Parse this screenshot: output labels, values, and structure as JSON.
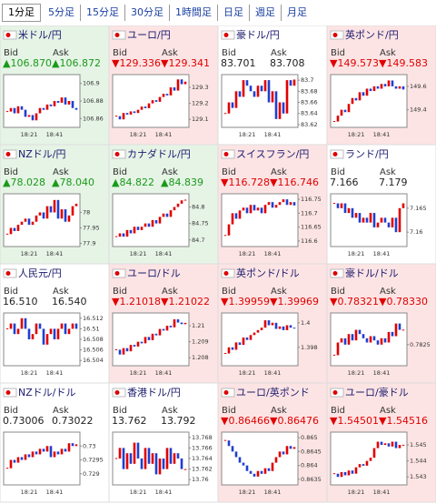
{
  "tabs": [
    "1分足",
    "5分足",
    "15分足",
    "30分足",
    "1時間足",
    "日足",
    "週足",
    "月足"
  ],
  "selected_tab": 0,
  "up_color": "#e00000",
  "down_color": "#1f3fd0",
  "chart_data": [
    {
      "type": "candlestick",
      "title": "米ドル/円",
      "bid_label": "Bid",
      "ask_label": "Ask",
      "bid": "▲106.870",
      "ask": "▲106.872",
      "background": "#e6f4e6",
      "ylim": [
        106.85,
        106.91
      ],
      "yticks": [
        106.9,
        106.88,
        106.86
      ],
      "x_labels": [
        "18:21",
        "18:41"
      ],
      "values": [
        106.868,
        106.872,
        106.866,
        106.874,
        106.87,
        106.862,
        106.864,
        106.858,
        106.866,
        106.872,
        106.87,
        106.876,
        106.874,
        106.88,
        106.878,
        106.884,
        106.876,
        106.88,
        106.872,
        106.87
      ]
    },
    {
      "type": "candlestick",
      "title": "ユーロ/円",
      "bid_label": "Bid",
      "ask_label": "Ask",
      "bid": "▼129.336",
      "ask": "▼129.341",
      "background": "#fde4e4",
      "ylim": [
        129.05,
        129.38
      ],
      "yticks": [
        129.3,
        129.2,
        129.1
      ],
      "x_labels": [
        "18:21",
        "18:41"
      ],
      "values": [
        129.12,
        129.1,
        129.14,
        129.13,
        129.15,
        129.14,
        129.16,
        129.18,
        129.17,
        129.2,
        129.22,
        129.21,
        129.24,
        129.26,
        129.25,
        129.3,
        129.28,
        129.35,
        129.32,
        129.336
      ]
    },
    {
      "type": "candlestick",
      "title": "豪ドル/円",
      "bid_label": "Bid",
      "ask_label": "Ask",
      "bid": "83.701",
      "ask": "83.708",
      "background": "#ffffff",
      "ylim": [
        83.615,
        83.71
      ],
      "yticks": [
        83.7,
        83.68,
        83.66,
        83.64,
        83.62
      ],
      "x_labels": [
        "18:21",
        "18:41"
      ],
      "values": [
        83.64,
        83.66,
        83.65,
        83.68,
        83.67,
        83.7,
        83.69,
        83.68,
        83.67,
        83.69,
        83.68,
        83.7,
        83.66,
        83.68,
        83.63,
        83.66,
        83.64,
        83.7,
        83.69,
        83.701
      ]
    },
    {
      "type": "candlestick",
      "title": "英ポンド/円",
      "bid_label": "Bid",
      "ask_label": "Ask",
      "bid": "▼149.573",
      "ask": "▼149.583",
      "background": "#fde4e4",
      "ylim": [
        149.25,
        149.7
      ],
      "yticks": [
        149.6,
        149.4
      ],
      "x_labels": [
        "18:21",
        "18:41"
      ],
      "values": [
        149.3,
        149.35,
        149.4,
        149.38,
        149.45,
        149.5,
        149.48,
        149.55,
        149.52,
        149.58,
        149.56,
        149.6,
        149.58,
        149.62,
        149.6,
        149.65,
        149.6,
        149.58,
        149.6,
        149.573
      ]
    },
    {
      "type": "candlestick",
      "title": "NZドル/円",
      "bid_label": "Bid",
      "ask_label": "Ask",
      "bid": "▲78.028",
      "ask": "▲78.040",
      "background": "#e6f4e6",
      "ylim": [
        77.89,
        78.06
      ],
      "yticks": [
        78,
        77.95,
        77.9
      ],
      "x_labels": [
        "18:21",
        "18:41"
      ],
      "values": [
        77.93,
        77.95,
        77.94,
        77.96,
        77.97,
        77.98,
        77.96,
        77.97,
        77.99,
        78,
        77.98,
        78.02,
        78.0,
        78.04,
        77.98,
        78.01,
        77.97,
        77.99,
        78.02,
        78.028
      ]
    },
    {
      "type": "candlestick",
      "title": "カナダドル/円",
      "bid_label": "Bid",
      "ask_label": "Ask",
      "bid": "▲84.822",
      "ask": "▲84.839",
      "background": "#e6f4e6",
      "ylim": [
        84.68,
        84.84
      ],
      "yticks": [
        84.8,
        84.75,
        84.7
      ],
      "x_labels": [
        "18:21",
        "18:41"
      ],
      "values": [
        84.71,
        84.72,
        84.71,
        84.73,
        84.72,
        84.74,
        84.73,
        84.74,
        84.75,
        84.74,
        84.76,
        84.75,
        84.77,
        84.78,
        84.77,
        84.79,
        84.8,
        84.81,
        84.82,
        84.822
      ]
    },
    {
      "type": "candlestick",
      "title": "スイスフラン/円",
      "bid_label": "Bid",
      "ask_label": "Ask",
      "bid": "▼116.728",
      "ask": "▼116.746",
      "background": "#fde4e4",
      "ylim": [
        116.58,
        116.77
      ],
      "yticks": [
        116.75,
        116.7,
        116.65,
        116.6
      ],
      "x_labels": [
        "18:21",
        "18:41"
      ],
      "values": [
        116.62,
        116.66,
        116.7,
        116.68,
        116.71,
        116.72,
        116.7,
        116.73,
        116.71,
        116.72,
        116.7,
        116.73,
        116.74,
        116.72,
        116.73,
        116.74,
        116.75,
        116.73,
        116.74,
        116.728
      ]
    },
    {
      "type": "candlestick",
      "title": "ランド/円",
      "bid_label": "Bid",
      "ask_label": "Ask",
      "bid": "7.166",
      "ask": "7.179",
      "background": "#ffffff",
      "ylim": [
        7.157,
        7.168
      ],
      "yticks": [
        7.165,
        7.16
      ],
      "x_labels": [
        "18:21",
        "18:41"
      ],
      "values": [
        7.166,
        7.165,
        7.166,
        7.164,
        7.165,
        7.163,
        7.164,
        7.162,
        7.163,
        7.162,
        7.164,
        7.161,
        7.162,
        7.163,
        7.162,
        7.161,
        7.163,
        7.16,
        7.165,
        7.166
      ]
    },
    {
      "type": "candlestick",
      "title": "人民元/円",
      "bid_label": "Bid",
      "ask_label": "Ask",
      "bid": "16.510",
      "ask": "16.540",
      "background": "#ffffff",
      "ylim": [
        16.503,
        16.513
      ],
      "yticks": [
        16.512,
        16.51,
        16.508,
        16.506,
        16.504
      ],
      "x_labels": [
        "18:21",
        "18:41"
      ],
      "values": [
        16.51,
        16.511,
        16.509,
        16.51,
        16.512,
        16.51,
        16.508,
        16.509,
        16.511,
        16.51,
        16.507,
        16.509,
        16.51,
        16.508,
        16.51,
        16.511,
        16.509,
        16.51,
        16.511,
        16.51
      ]
    },
    {
      "type": "candlestick",
      "title": "ユーロ/ドル",
      "bid_label": "Bid",
      "ask_label": "Ask",
      "bid": "▼1.21018",
      "ask": "▼1.21022",
      "background": "#fde4e4",
      "ylim": [
        1.2075,
        1.2108
      ],
      "yticks": [
        1.21,
        1.209,
        1.208
      ],
      "x_labels": [
        "18:21",
        "18:41"
      ],
      "values": [
        1.2085,
        1.2082,
        1.2086,
        1.2084,
        1.2088,
        1.2087,
        1.209,
        1.2089,
        1.2093,
        1.2091,
        1.2095,
        1.2094,
        1.2098,
        1.2097,
        1.21,
        1.2099,
        1.2104,
        1.2102,
        1.2101,
        1.21018
      ]
    },
    {
      "type": "candlestick",
      "title": "英ポンド/ドル",
      "bid_label": "Bid",
      "ask_label": "Ask",
      "bid": "▼1.39959",
      "ask": "▼1.39969",
      "background": "#fde4e4",
      "ylim": [
        1.3965,
        1.4008
      ],
      "yticks": [
        1.4,
        1.398
      ],
      "x_labels": [
        "18:21",
        "18:41"
      ],
      "values": [
        1.3975,
        1.398,
        1.3978,
        1.3984,
        1.3982,
        1.3988,
        1.3986,
        1.399,
        1.3992,
        1.3994,
        1.3996,
        1.4002,
        1.3998,
        1.4,
        1.3995,
        1.3997,
        1.3994,
        1.3998,
        1.3996,
        1.39959
      ]
    },
    {
      "type": "candlestick",
      "title": "豪ドル/ドル",
      "bid_label": "Bid",
      "ask_label": "Ask",
      "bid": "▼0.78321",
      "ask": "▼0.78330",
      "background": "#fde4e4",
      "ylim": [
        0.7815,
        0.784
      ],
      "yticks": [
        0.7825
      ],
      "x_labels": [
        "18:21",
        "18:41"
      ],
      "values": [
        0.782,
        0.7826,
        0.7828,
        0.7825,
        0.783,
        0.7827,
        0.7832,
        0.783,
        0.7828,
        0.7826,
        0.7829,
        0.7827,
        0.7825,
        0.7828,
        0.7826,
        0.7831,
        0.7829,
        0.7835,
        0.7832,
        0.78321
      ]
    },
    {
      "type": "candlestick",
      "title": "NZドル/ドル",
      "bid_label": "Bid",
      "ask_label": "Ask",
      "bid": "0.73006",
      "ask": "0.73022",
      "background": "#ffffff",
      "ylim": [
        0.7286,
        0.7305
      ],
      "yticks": [
        0.73,
        0.7295,
        0.729
      ],
      "x_labels": [
        "18:21",
        "18:41"
      ],
      "values": [
        0.7292,
        0.7295,
        0.7294,
        0.7296,
        0.7295,
        0.7297,
        0.7296,
        0.7298,
        0.7297,
        0.7299,
        0.7298,
        0.73,
        0.7296,
        0.7298,
        0.7297,
        0.7299,
        0.7298,
        0.7301,
        0.73,
        0.73006
      ]
    },
    {
      "type": "candlestick",
      "title": "香港ドル/円",
      "bid_label": "Bid",
      "ask_label": "Ask",
      "bid": "13.762",
      "ask": "13.792",
      "background": "#ffffff",
      "ylim": [
        13.759,
        13.769
      ],
      "yticks": [
        13.768,
        13.766,
        13.764,
        13.762,
        13.76
      ],
      "x_labels": [
        "18:21",
        "18:41"
      ],
      "values": [
        13.764,
        13.766,
        13.762,
        13.765,
        13.763,
        13.767,
        13.764,
        13.762,
        13.766,
        13.763,
        13.765,
        13.761,
        13.764,
        13.762,
        13.766,
        13.763,
        13.765,
        13.764,
        13.762,
        13.762
      ]
    },
    {
      "type": "candlestick",
      "title": "ユーロ/英ポンド",
      "bid_label": "Bid",
      "ask_label": "Ask",
      "bid": "▼0.86466",
      "ask": "▼0.86476",
      "background": "#fde4e4",
      "ylim": [
        0.8633,
        0.8652
      ],
      "yticks": [
        0.865,
        0.8645,
        0.864,
        0.8635
      ],
      "x_labels": [
        "18:21",
        "18:41"
      ],
      "values": [
        0.8649,
        0.8647,
        0.8645,
        0.8643,
        0.8641,
        0.864,
        0.8638,
        0.8637,
        0.8636,
        0.8638,
        0.8637,
        0.8639,
        0.8638,
        0.8641,
        0.8643,
        0.8645,
        0.8644,
        0.8647,
        0.8646,
        0.86466
      ]
    },
    {
      "type": "candlestick",
      "title": "ユーロ/豪ドル",
      "bid_label": "Bid",
      "ask_label": "Ask",
      "bid": "▼1.54501",
      "ask": "▼1.54516",
      "background": "#fde4e4",
      "ylim": [
        1.5425,
        1.5458
      ],
      "yticks": [
        1.545,
        1.544,
        1.543
      ],
      "x_labels": [
        "18:21",
        "18:41"
      ],
      "values": [
        1.5432,
        1.543,
        1.5433,
        1.5431,
        1.5434,
        1.5432,
        1.5436,
        1.5438,
        1.5437,
        1.544,
        1.5442,
        1.5448,
        1.5452,
        1.545,
        1.5451,
        1.5449,
        1.5452,
        1.5448,
        1.545,
        1.54501
      ]
    }
  ]
}
